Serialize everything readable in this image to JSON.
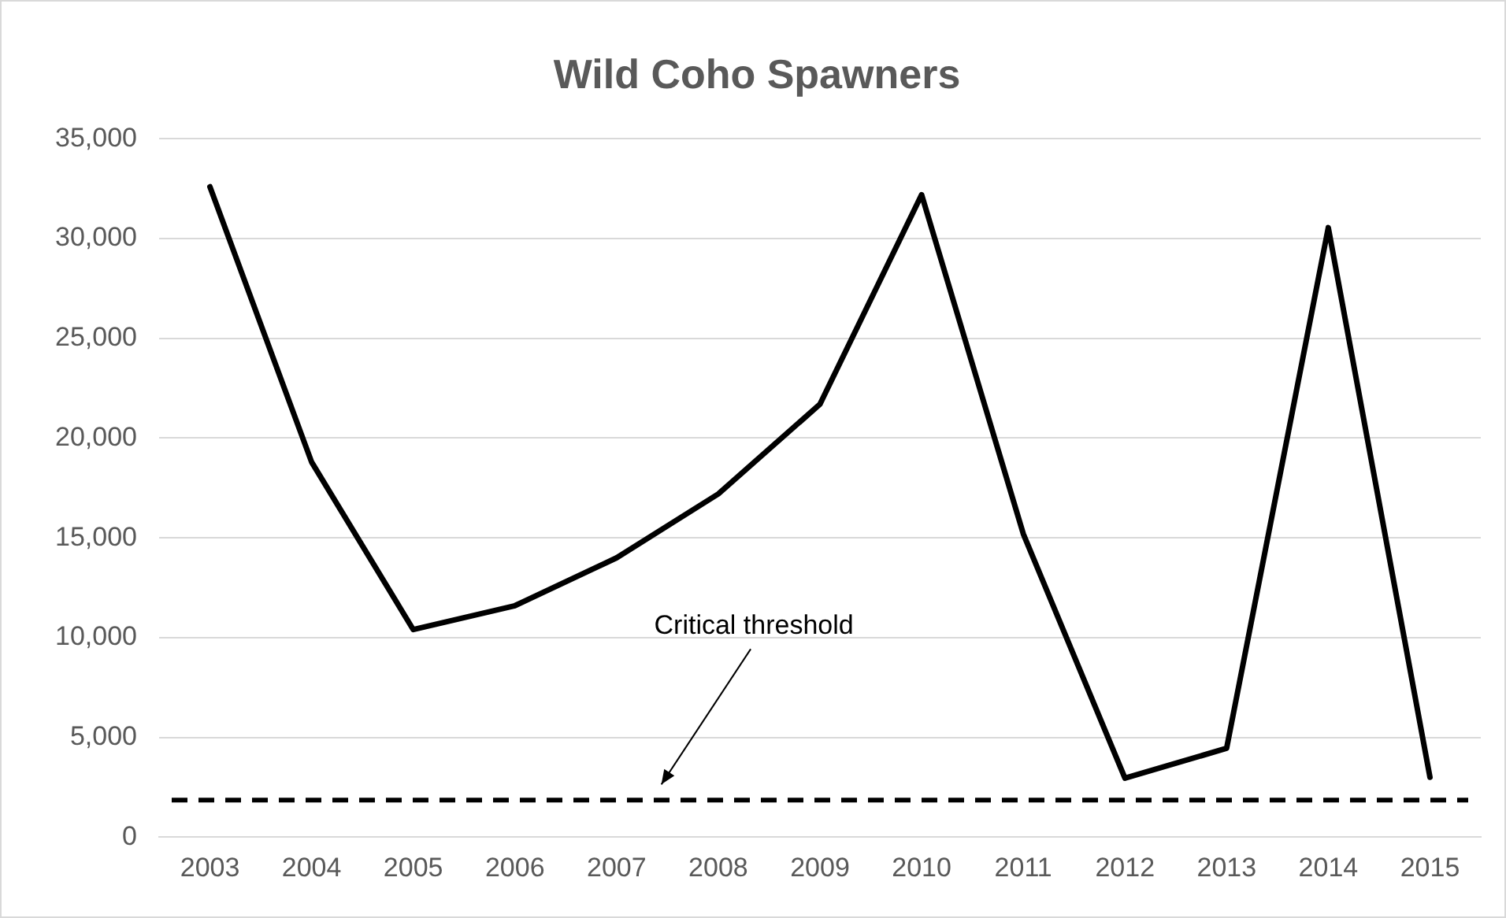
{
  "chart_data": {
    "type": "line",
    "title": "Wild Coho Spawners",
    "categories": [
      "2003",
      "2004",
      "2005",
      "2006",
      "2007",
      "2008",
      "2009",
      "2010",
      "2011",
      "2012",
      "2013",
      "2014",
      "2015"
    ],
    "series": [
      {
        "color": "#000000",
        "values": [
          32600,
          18800,
          10400,
          11600,
          14000,
          17200,
          21700,
          32200,
          15200,
          2950,
          4450,
          30550,
          3000
        ]
      }
    ],
    "ylim": [
      0,
      35000
    ],
    "yticks": [
      {
        "value": 0,
        "label": "0"
      },
      {
        "value": 5000,
        "label": "5,000"
      },
      {
        "value": 10000,
        "label": "10,000"
      },
      {
        "value": 15000,
        "label": "15,000"
      },
      {
        "value": 20000,
        "label": "20,000"
      },
      {
        "value": 25000,
        "label": "25,000"
      },
      {
        "value": 30000,
        "label": "30,000"
      },
      {
        "value": 35000,
        "label": "35,000"
      }
    ],
    "grid": "y",
    "legend": false,
    "marker": "none",
    "line_style": "solid",
    "ref_lines": [
      {
        "axis": "y",
        "value": 1850,
        "label": "Critical threshold",
        "color": "#000000",
        "line_style": "dashed"
      }
    ]
  }
}
